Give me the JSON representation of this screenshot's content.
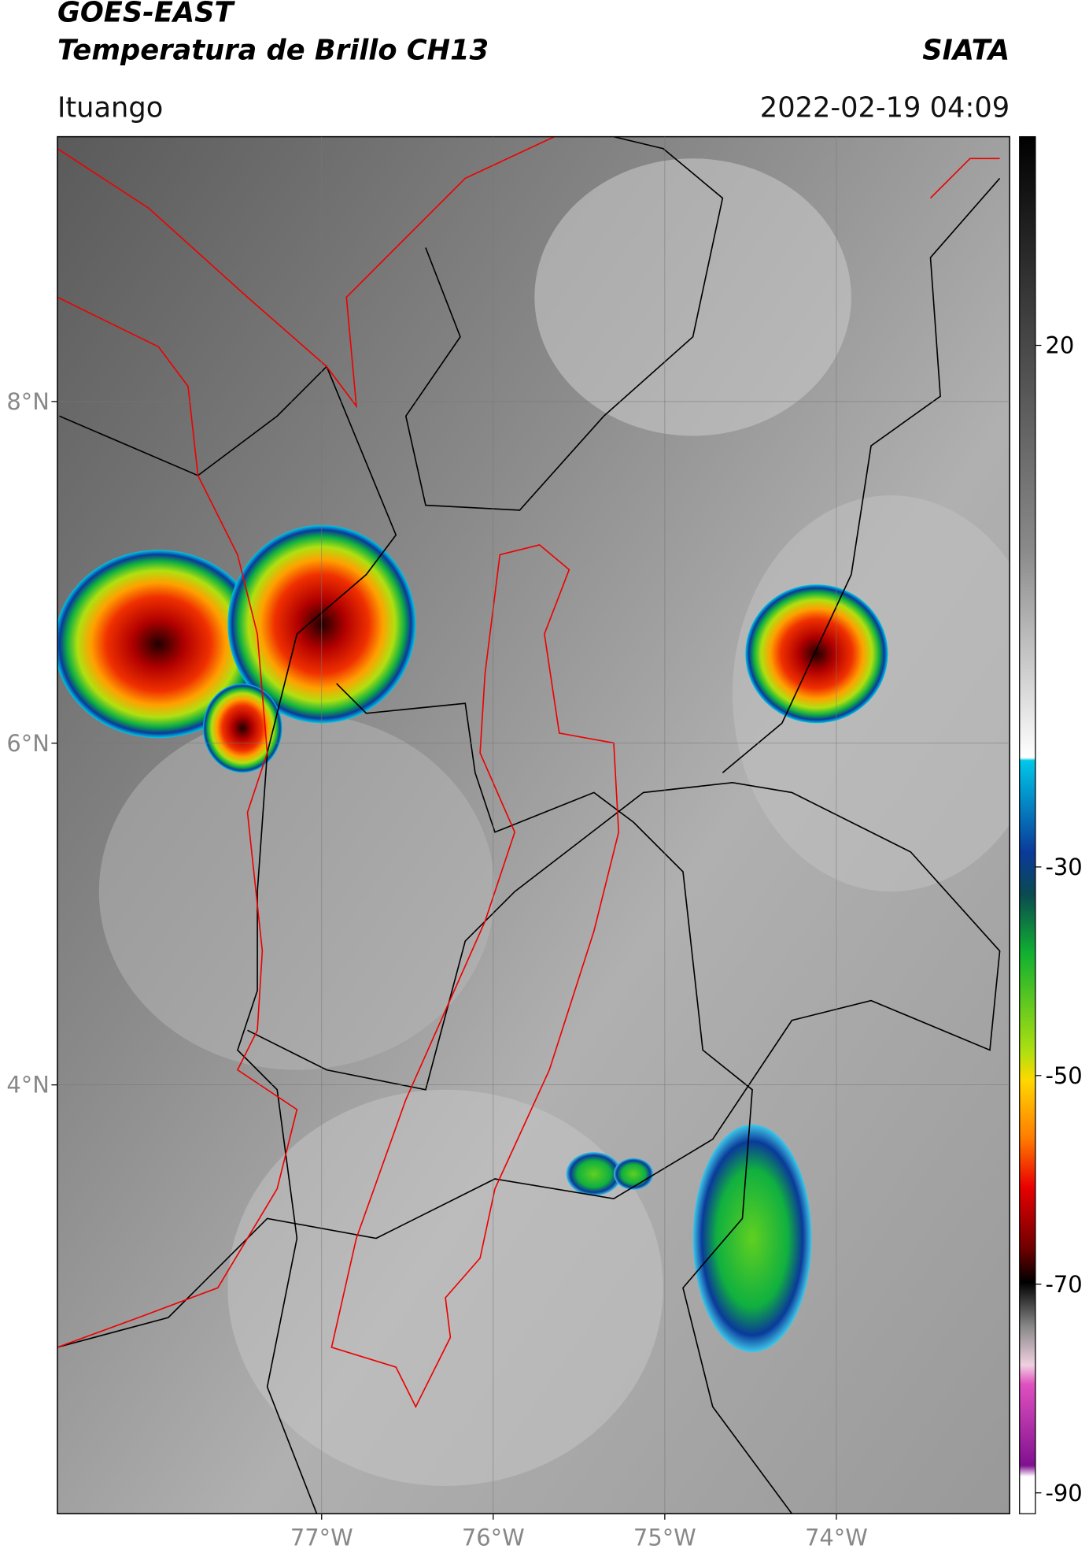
{
  "header": {
    "title": "GOES-EAST",
    "subtitle": "Temperatura de Brillo CH13",
    "org": "SIATA",
    "location": "Ituango",
    "datetime": "2022-02-19 04:09"
  },
  "map": {
    "latlim": [
      1.49,
      9.55
    ],
    "lonlim": [
      -78.54,
      -72.99
    ],
    "lat_ticks": [
      {
        "value": 8,
        "label": "8°N"
      },
      {
        "value": 6,
        "label": "6°N"
      },
      {
        "value": 4,
        "label": "4°N"
      }
    ],
    "lon_ticks": [
      {
        "value": -77,
        "label": "77°W"
      },
      {
        "value": -76,
        "label": "76°W"
      },
      {
        "value": -75,
        "label": "75°W"
      },
      {
        "value": -74,
        "label": "74°W"
      }
    ],
    "colorbar": {
      "clim": [
        -92,
        40
      ],
      "ticks": [
        20,
        -30,
        -50,
        -70,
        -90
      ]
    }
  }
}
